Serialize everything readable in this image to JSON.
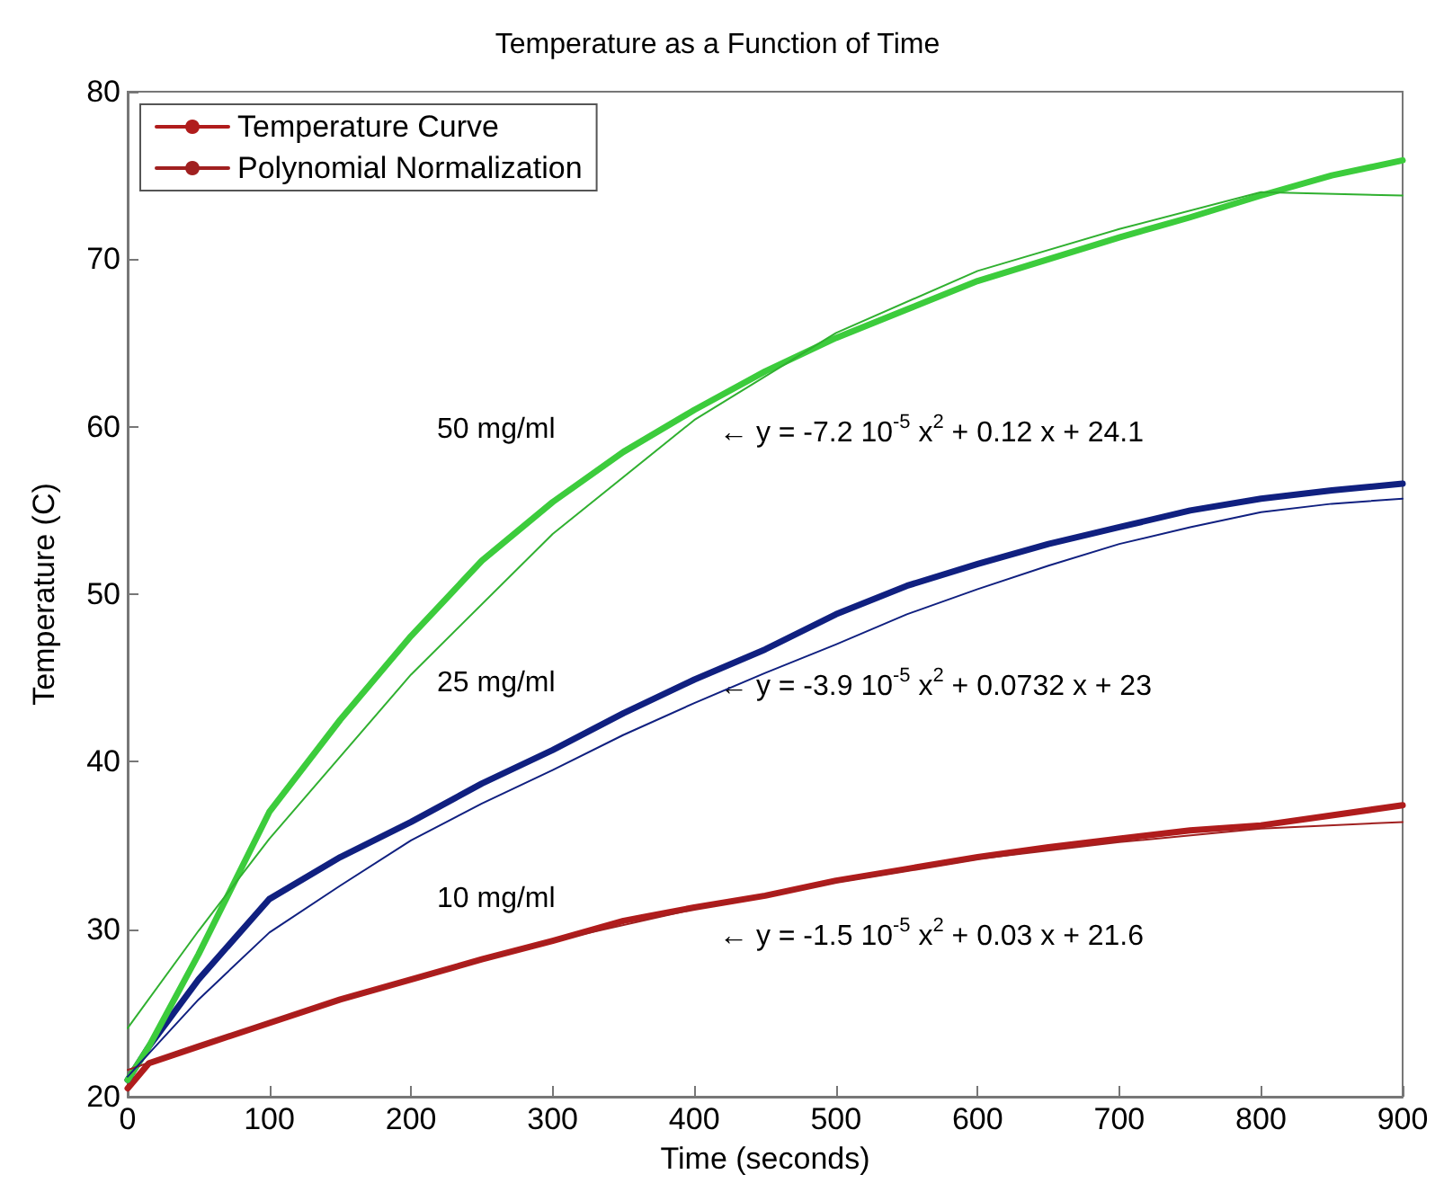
{
  "chart_data": {
    "type": "line",
    "title": "Temperature as a Function of Time",
    "xlabel": "Time (seconds)",
    "ylabel": "Temperature (C)",
    "x": [
      0,
      15,
      50,
      100,
      150,
      200,
      250,
      300,
      350,
      400,
      450,
      500,
      550,
      600,
      650,
      700,
      750,
      800,
      850,
      900
    ],
    "series": [
      {
        "name": "Temperature Curve",
        "color": "#b01c1c",
        "values": [
          20.5,
          22,
          23,
          24.4,
          25.8,
          27,
          28.2,
          29.3,
          30.5,
          31.3,
          32,
          32.9,
          33.6,
          34.3,
          34.9,
          35.4,
          35.9,
          36.2,
          36.8,
          37.4
        ]
      },
      {
        "name": "Polynomial Normalization",
        "color": "#a02020",
        "x": [
          0,
          100,
          200,
          300,
          400,
          500,
          600,
          700,
          800,
          900
        ],
        "values": [
          21.6,
          24.5,
          27,
          29.3,
          31.2,
          32.8,
          34.2,
          35.2,
          36,
          36.4
        ]
      },
      {
        "color": "#102080",
        "values": [
          21,
          23,
          27,
          31.8,
          34.3,
          36.4,
          38.7,
          40.7,
          42.9,
          44.9,
          46.7,
          48.8,
          50.5,
          51.8,
          53,
          54,
          55,
          55.7,
          56.2,
          56.6
        ]
      },
      {
        "color": "#102080",
        "x": [
          0,
          50,
          100,
          150,
          200,
          250,
          300,
          350,
          400,
          450,
          500,
          550,
          600,
          650,
          700,
          750,
          800,
          850,
          900
        ],
        "values": [
          21.2,
          25.8,
          29.8,
          32.6,
          35.3,
          37.5,
          39.5,
          41.6,
          43.5,
          45.3,
          47,
          48.8,
          50.3,
          51.7,
          53,
          54,
          54.9,
          55.4,
          55.7
        ]
      },
      {
        "color": "#3ccc3c",
        "values": [
          21,
          23,
          28.5,
          37,
          42.5,
          47.5,
          52,
          55.5,
          58.5,
          61,
          63.3,
          65.3,
          67,
          68.7,
          70,
          71.3,
          72.5,
          73.8,
          75,
          75.9
        ]
      },
      {
        "color": "#30b030",
        "x": [
          0,
          50,
          100,
          200,
          300,
          400,
          500,
          600,
          700,
          800,
          900
        ],
        "values": [
          24.1,
          29.9,
          35.4,
          45.2,
          53.6,
          60.4,
          65.6,
          69.3,
          71.8,
          74,
          73.8
        ]
      }
    ],
    "xlim": [
      0,
      900
    ],
    "xticks": [
      0,
      100,
      200,
      300,
      400,
      500,
      600,
      700,
      800,
      900
    ],
    "ylim": [
      20,
      80
    ],
    "yticks": [
      20,
      30,
      40,
      50,
      60,
      70,
      80
    ],
    "grid": false,
    "legend": "top left",
    "marker": "none",
    "line_style": "solid",
    "annotations": [
      "50 mg/ml",
      "← y = -7.2 10$^{-5}$ x$^{2}$ + 0.12 x + 24.1",
      "25 mg/ml",
      "← y = -3.9 10$^{-5}$ x$^{2}$ + 0.0732 x + 23",
      "10 mg/ml",
      "← y = -1.5 10$^{-5}$ x$^{2}$ + 0.03 x + 21.6"
    ]
  }
}
